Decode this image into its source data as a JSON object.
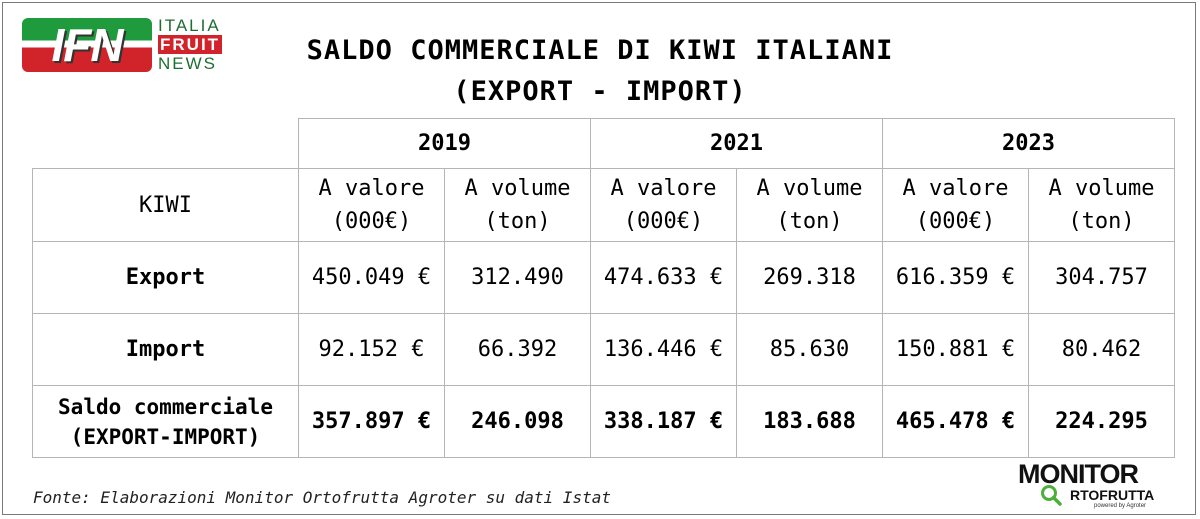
{
  "logo": {
    "line1": "ITALIA",
    "line2": "FRUIT",
    "line3": "NEWS",
    "badge": "IFN"
  },
  "title": {
    "line1": "SALDO COMMERCIALE DI KIWI ITALIANI",
    "line2": "(EXPORT - IMPORT)"
  },
  "table": {
    "years": [
      "2019",
      "2021",
      "2023"
    ],
    "header": {
      "label": "KIWI",
      "valore_line1": "A valore",
      "valore_line2": "(000€)",
      "volume_line1": "A volume",
      "volume_line2": "(ton)"
    },
    "rows": [
      {
        "label": "Export",
        "values": [
          "450.049 €",
          "312.490",
          "474.633 €",
          "269.318",
          "616.359 €",
          "304.757"
        ]
      },
      {
        "label": "Import",
        "values": [
          "92.152 €",
          "66.392",
          "136.446 €",
          "85.630",
          "150.881 €",
          "80.462"
        ]
      }
    ],
    "saldo": {
      "label_line1": "Saldo commerciale",
      "label_line2": "(EXPORT-IMPORT)",
      "values": [
        "357.897 €",
        "246.098",
        "338.187 €",
        "183.688",
        "465.478 €",
        "224.295"
      ]
    }
  },
  "source": "Fonte: Elaborazioni Monitor Ortofrutta Agroter su dati Istat",
  "monitor_logo": {
    "top": "MONITOR",
    "sub": "RTOFRUTTA",
    "powered": "powered by Agroter",
    "accent": "#4caf3a"
  },
  "colors": {
    "ifn_green": "#1f9a3c",
    "ifn_red": "#d0232a",
    "grid": "#b5b5b5"
  }
}
